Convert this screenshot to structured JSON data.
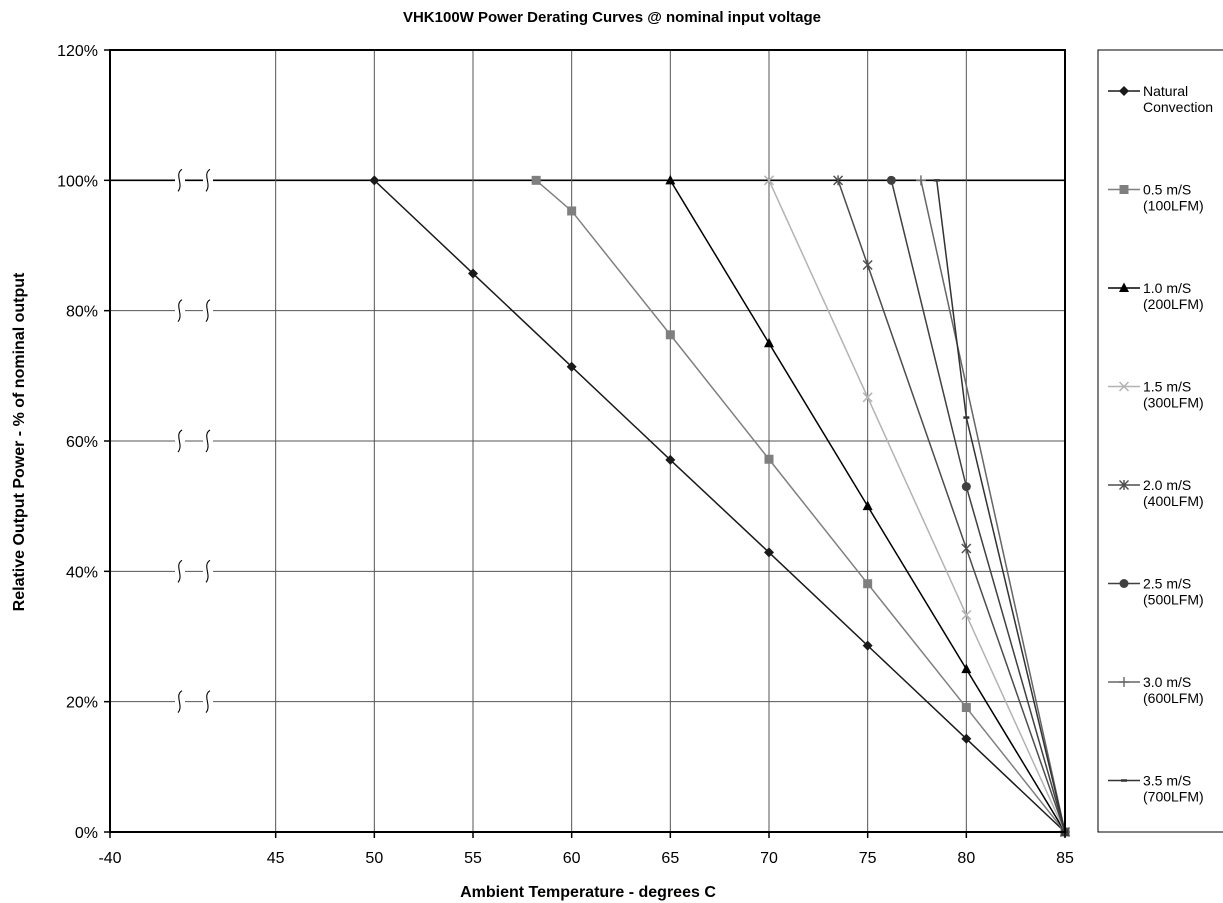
{
  "chart_data": {
    "type": "line",
    "title": "VHK100W Power Derating Curves @ nominal input voltage",
    "xlabel": "Ambient Temperature - degrees C",
    "ylabel": "Relative Output Power - % of nominal output",
    "x_tick_labels": [
      "-40",
      "45",
      "50",
      "55",
      "60",
      "65",
      "70",
      "75",
      "80",
      "85"
    ],
    "y_tick_labels": [
      "0%",
      "20%",
      "40%",
      "60%",
      "80%",
      "100%",
      "120%"
    ],
    "y_ticks": [
      0,
      20,
      40,
      60,
      80,
      100,
      120
    ],
    "ylim": [
      0,
      120
    ],
    "axis_break": "between -40 and 45",
    "grid": true,
    "legend_position": "right",
    "series": [
      {
        "name": "Natural Convection",
        "label_lines": [
          "Natural",
          "Convection"
        ],
        "marker": "diamond",
        "color": "#1a1a1a",
        "x": [
          50,
          55,
          60,
          65,
          70,
          75,
          80,
          85
        ],
        "y": [
          100,
          85.7,
          71.4,
          57.1,
          42.9,
          28.6,
          14.3,
          0
        ]
      },
      {
        "name": "0.5 m/S (100LFM)",
        "label_lines": [
          "0.5 m/S",
          "(100LFM)"
        ],
        "marker": "square",
        "color": "#7f7f7f",
        "x": [
          58.2,
          60,
          65,
          70,
          75,
          80,
          85
        ],
        "y": [
          100,
          95.3,
          76.3,
          57.2,
          38.1,
          19.1,
          0
        ]
      },
      {
        "name": "1.0 m/S (200LFM)",
        "label_lines": [
          "1.0 m/S",
          "(200LFM)"
        ],
        "marker": "triangle",
        "color": "#000000",
        "x": [
          65,
          70,
          75,
          80,
          85
        ],
        "y": [
          100,
          75,
          50,
          25,
          0
        ]
      },
      {
        "name": "1.5 m/S (300LFM)",
        "label_lines": [
          "1.5 m/S",
          "(300LFM)"
        ],
        "marker": "x",
        "color": "#b3b3b3",
        "x": [
          70,
          75,
          80,
          85
        ],
        "y": [
          100,
          66.7,
          33.3,
          0
        ]
      },
      {
        "name": "2.0 m/S (400LFM)",
        "label_lines": [
          "2.0 m/S",
          "(400LFM)"
        ],
        "marker": "star",
        "color": "#4d4d4d",
        "x": [
          73.5,
          75,
          80,
          85
        ],
        "y": [
          100,
          87,
          43.5,
          0
        ]
      },
      {
        "name": "2.5 m/S (500LFM)",
        "label_lines": [
          "2.5 m/S",
          "(500LFM)"
        ],
        "marker": "circle",
        "color": "#404040",
        "x": [
          76.2,
          80,
          85
        ],
        "y": [
          100,
          53,
          0
        ]
      },
      {
        "name": "3.0 m/S (600LFM)",
        "label_lines": [
          "3.0 m/S",
          "(600LFM)"
        ],
        "marker": "plus",
        "color": "#666666",
        "x": [
          77.7,
          85
        ],
        "y": [
          100,
          0
        ]
      },
      {
        "name": "3.5 m/S (700LFM)",
        "label_lines": [
          "3.5 m/S",
          "(700LFM)"
        ],
        "marker": "dash",
        "color": "#333333",
        "x": [
          78.5,
          80,
          85
        ],
        "y": [
          100,
          63.6,
          0
        ]
      }
    ]
  }
}
